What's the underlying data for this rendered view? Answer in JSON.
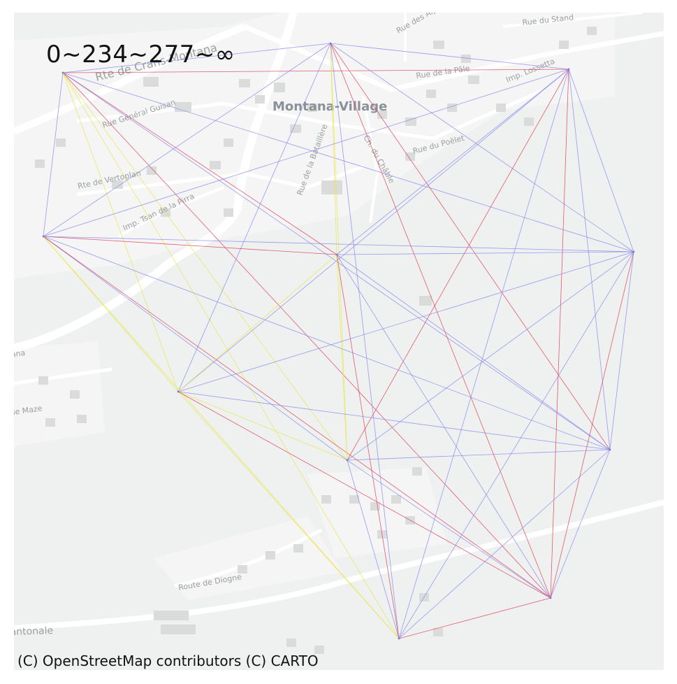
{
  "legend": {
    "title": "0~234~277~∞"
  },
  "attribution": "(C) OpenStreetMap contributors (C) CARTO",
  "basemap": {
    "place_label": "Montana-Village",
    "street_labels": [
      "Rte de Crans-Montana",
      "Rue Général Guisan",
      "Rte de Vertoplan",
      "Imp. Tsan de la Pirra",
      "Rue de la Bataillère",
      "Ch. du Châble",
      "Rue du Poëlet",
      "Rue de la Pâle",
      "Imp. Lossetta",
      "Rue du Stand",
      "Rue des Alpes",
      "Rte de Montana",
      "Chemin de Maze",
      "Route de Diogne",
      "Route Cantonale"
    ]
  },
  "colors": {
    "map_background": "#eef1ef",
    "road": "#ffffff",
    "building": "#d9dcda",
    "tier_low": "#e6e64d",
    "tier_mid": "#8a8aee",
    "tier_high": "#e0405c"
  },
  "nodes": [
    {
      "id": "A"
    },
    {
      "id": "B"
    },
    {
      "id": "C"
    },
    {
      "id": "D"
    },
    {
      "id": "E"
    },
    {
      "id": "F"
    },
    {
      "id": "G"
    },
    {
      "id": "H"
    },
    {
      "id": "I"
    },
    {
      "id": "J"
    },
    {
      "id": "K"
    }
  ],
  "edges": [
    {
      "from": "A",
      "to": "B",
      "tier": "mid"
    },
    {
      "from": "A",
      "to": "C",
      "tier": "high"
    },
    {
      "from": "A",
      "to": "D",
      "tier": "mid"
    },
    {
      "from": "A",
      "to": "E",
      "tier": "high"
    },
    {
      "from": "A",
      "to": "F",
      "tier": "mid"
    },
    {
      "from": "A",
      "to": "G",
      "tier": "low"
    },
    {
      "from": "A",
      "to": "H",
      "tier": "low"
    },
    {
      "from": "A",
      "to": "I",
      "tier": "mid"
    },
    {
      "from": "A",
      "to": "J",
      "tier": "high"
    },
    {
      "from": "A",
      "to": "K",
      "tier": "low"
    },
    {
      "from": "B",
      "to": "C",
      "tier": "mid"
    },
    {
      "from": "B",
      "to": "D",
      "tier": "mid"
    },
    {
      "from": "B",
      "to": "E",
      "tier": "low"
    },
    {
      "from": "B",
      "to": "F",
      "tier": "mid"
    },
    {
      "from": "B",
      "to": "G",
      "tier": "mid"
    },
    {
      "from": "B",
      "to": "H",
      "tier": "low"
    },
    {
      "from": "B",
      "to": "I",
      "tier": "high"
    },
    {
      "from": "B",
      "to": "J",
      "tier": "high"
    },
    {
      "from": "B",
      "to": "K",
      "tier": "mid"
    },
    {
      "from": "C",
      "to": "D",
      "tier": "mid"
    },
    {
      "from": "C",
      "to": "E",
      "tier": "mid"
    },
    {
      "from": "C",
      "to": "F",
      "tier": "mid"
    },
    {
      "from": "C",
      "to": "G",
      "tier": "mid"
    },
    {
      "from": "C",
      "to": "H",
      "tier": "high"
    },
    {
      "from": "C",
      "to": "I",
      "tier": "mid"
    },
    {
      "from": "C",
      "to": "J",
      "tier": "high"
    },
    {
      "from": "C",
      "to": "K",
      "tier": "mid"
    },
    {
      "from": "D",
      "to": "E",
      "tier": "high"
    },
    {
      "from": "D",
      "to": "F",
      "tier": "mid"
    },
    {
      "from": "D",
      "to": "G",
      "tier": "low"
    },
    {
      "from": "D",
      "to": "H",
      "tier": "mid"
    },
    {
      "from": "D",
      "to": "I",
      "tier": "mid"
    },
    {
      "from": "D",
      "to": "J",
      "tier": "high"
    },
    {
      "from": "D",
      "to": "K",
      "tier": "low"
    },
    {
      "from": "E",
      "to": "F",
      "tier": "mid"
    },
    {
      "from": "E",
      "to": "G",
      "tier": "low"
    },
    {
      "from": "E",
      "to": "H",
      "tier": "low"
    },
    {
      "from": "E",
      "to": "I",
      "tier": "mid"
    },
    {
      "from": "E",
      "to": "J",
      "tier": "mid"
    },
    {
      "from": "E",
      "to": "K",
      "tier": "high"
    },
    {
      "from": "F",
      "to": "G",
      "tier": "mid"
    },
    {
      "from": "F",
      "to": "H",
      "tier": "mid"
    },
    {
      "from": "F",
      "to": "I",
      "tier": "mid"
    },
    {
      "from": "F",
      "to": "J",
      "tier": "high"
    },
    {
      "from": "F",
      "to": "K",
      "tier": "mid"
    },
    {
      "from": "G",
      "to": "H",
      "tier": "low"
    },
    {
      "from": "G",
      "to": "I",
      "tier": "mid"
    },
    {
      "from": "G",
      "to": "J",
      "tier": "high"
    },
    {
      "from": "G",
      "to": "K",
      "tier": "low"
    },
    {
      "from": "H",
      "to": "I",
      "tier": "mid"
    },
    {
      "from": "H",
      "to": "J",
      "tier": "mid"
    },
    {
      "from": "H",
      "to": "K",
      "tier": "mid"
    },
    {
      "from": "I",
      "to": "J",
      "tier": "mid"
    },
    {
      "from": "I",
      "to": "K",
      "tier": "mid"
    },
    {
      "from": "J",
      "to": "K",
      "tier": "high"
    }
  ]
}
